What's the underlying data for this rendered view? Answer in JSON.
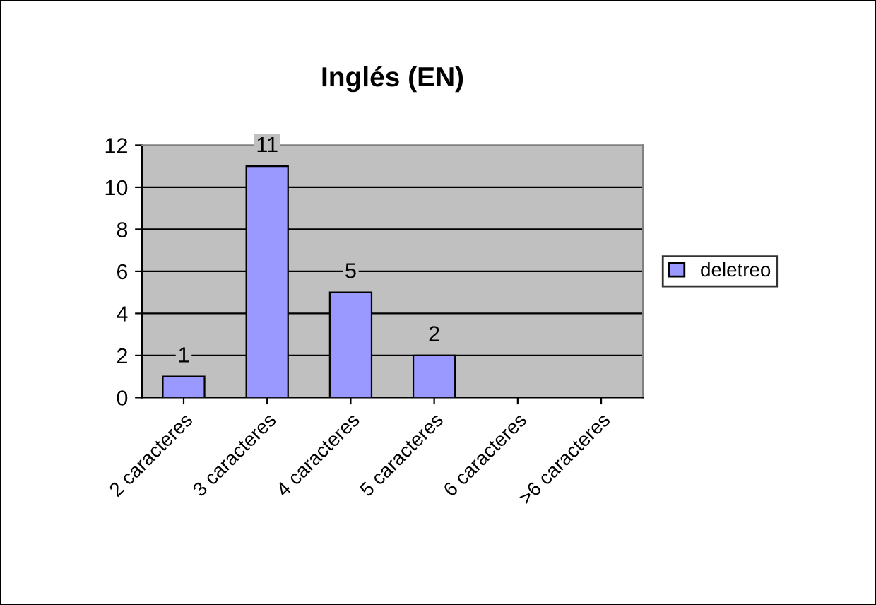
{
  "chart_data": {
    "type": "bar",
    "title": "Inglés (EN)",
    "categories": [
      "2 caracteres",
      "3 caracteres",
      "4 caracteres",
      "5 caracteres",
      "6 caracteres",
      ">6 caracteres"
    ],
    "series": [
      {
        "name": "deletreo",
        "color": "#9999ff",
        "values": [
          1,
          11,
          5,
          2,
          null,
          null
        ]
      }
    ],
    "ylim": [
      0,
      12
    ],
    "yticks": [
      0,
      2,
      4,
      6,
      8,
      10,
      12
    ],
    "grid": "y",
    "legend": "right",
    "data_labels": true
  }
}
